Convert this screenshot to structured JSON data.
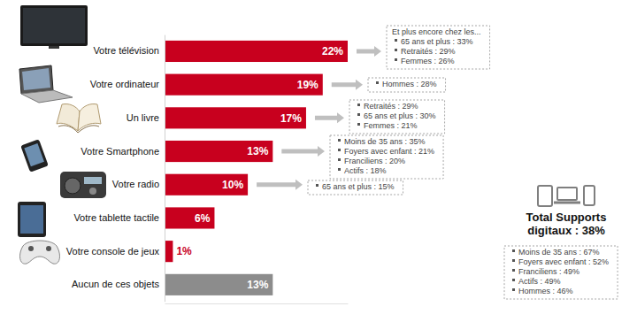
{
  "chart_data": {
    "type": "bar",
    "orientation": "horizontal",
    "categories": [
      "Votre télévision",
      "Votre ordinateur",
      "Un livre",
      "Votre Smartphone",
      "Votre radio",
      "Votre tablette tactile",
      "Votre console de jeux",
      "Aucun de ces objets"
    ],
    "values": [
      22,
      19,
      17,
      13,
      10,
      6,
      1,
      13
    ],
    "value_labels": [
      "22%",
      "19%",
      "17%",
      "13%",
      "10%",
      "6%",
      "1%",
      "13%"
    ],
    "colors": [
      "#c8001e",
      "#c8001e",
      "#c8001e",
      "#c8001e",
      "#c8001e",
      "#c8001e",
      "#c8001e",
      "#8c8c8c"
    ],
    "data_labels": true,
    "tick_labels": "y",
    "xlim": [
      0,
      22
    ],
    "annotations": [
      {
        "title": "Et plus encore chez les...",
        "items": [
          "65 ans et plus : 33%",
          "Retraités : 29%",
          "Femmes : 26%"
        ]
      },
      {
        "items": [
          "Hommes : 28%"
        ]
      },
      {
        "items": [
          "Retraités : 29%",
          "65 ans et plus : 30%",
          "Femmes : 21%"
        ]
      },
      {
        "items": [
          "Moins de 35 ans : 35%",
          "Foyers avec enfant : 21%",
          "Franciliens : 20%",
          "Actifs : 18%"
        ]
      },
      {
        "items": [
          "65 ans et plus : 15%"
        ]
      },
      {
        "title": "Total Supports digitaux : 38%",
        "items": [
          "Moins de 35 ans : 67%",
          "Foyers avec enfant : 52%",
          "Franciliens : 49%",
          "Actifs : 49%",
          "Hommes : 46%"
        ]
      }
    ]
  }
}
